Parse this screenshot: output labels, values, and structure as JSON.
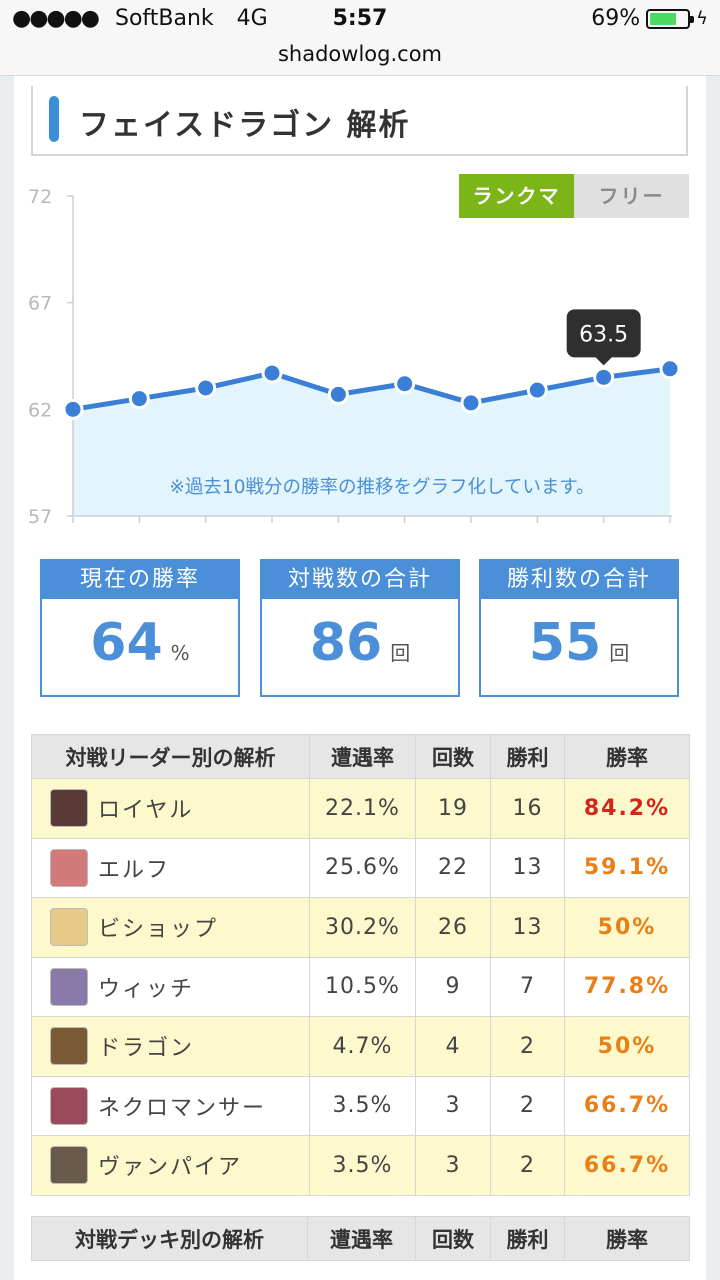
{
  "status_bar": {
    "signal": "●●●●●",
    "carrier": "SoftBank",
    "network": "4G",
    "time": "5:57",
    "battery": "69%"
  },
  "url": "shadowlog.com",
  "title": "フェイスドラゴン 解析",
  "tabs": {
    "active": "ランクマ",
    "inactive": "フリー"
  },
  "chart_data": {
    "type": "area",
    "y_ticks": [
      "72",
      "67",
      "62",
      "57"
    ],
    "ylim": [
      57,
      72
    ],
    "values": [
      62.0,
      62.5,
      63.0,
      63.7,
      62.7,
      63.2,
      62.3,
      62.9,
      63.5,
      63.9
    ],
    "tooltip": "63.5",
    "note": "※過去10戦分の勝率の推移をグラフ化しています。",
    "colors": {
      "line": "#3a7fd5",
      "fill": "#e2f4fc"
    }
  },
  "stats": [
    {
      "label": "現在の勝率",
      "value": "64",
      "unit": "%"
    },
    {
      "label": "対戦数の合計",
      "value": "86",
      "unit": "回"
    },
    {
      "label": "勝利数の合計",
      "value": "55",
      "unit": "回"
    }
  ],
  "leader_table": {
    "headers": [
      "対戦リーダー別の解析",
      "遭遇率",
      "回数",
      "勝利",
      "勝率"
    ],
    "rows": [
      {
        "leader": "ロイヤル",
        "encounter": "22.1%",
        "count": "19",
        "wins": "16",
        "rate": "84.2%",
        "level": "high",
        "avatar": "#5a3a34"
      },
      {
        "leader": "エルフ",
        "encounter": "25.6%",
        "count": "22",
        "wins": "13",
        "rate": "59.1%",
        "level": "mid",
        "avatar": "#d27a7a"
      },
      {
        "leader": "ビショップ",
        "encounter": "30.2%",
        "count": "26",
        "wins": "13",
        "rate": "50%",
        "level": "mid",
        "avatar": "#e7c98a"
      },
      {
        "leader": "ウィッチ",
        "encounter": "10.5%",
        "count": "9",
        "wins": "7",
        "rate": "77.8%",
        "level": "mid",
        "avatar": "#8a7aa8"
      },
      {
        "leader": "ドラゴン",
        "encounter": "4.7%",
        "count": "4",
        "wins": "2",
        "rate": "50%",
        "level": "mid",
        "avatar": "#7a5a32"
      },
      {
        "leader": "ネクロマンサー",
        "encounter": "3.5%",
        "count": "3",
        "wins": "2",
        "rate": "66.7%",
        "level": "mid",
        "avatar": "#9a4a5a"
      },
      {
        "leader": "ヴァンパイア",
        "encounter": "3.5%",
        "count": "3",
        "wins": "2",
        "rate": "66.7%",
        "level": "mid",
        "avatar": "#6a5a4a"
      }
    ]
  },
  "deck_table": {
    "headers": [
      "対戦デッキ別の解析",
      "遭遇率",
      "回数",
      "勝利",
      "勝率"
    ]
  }
}
